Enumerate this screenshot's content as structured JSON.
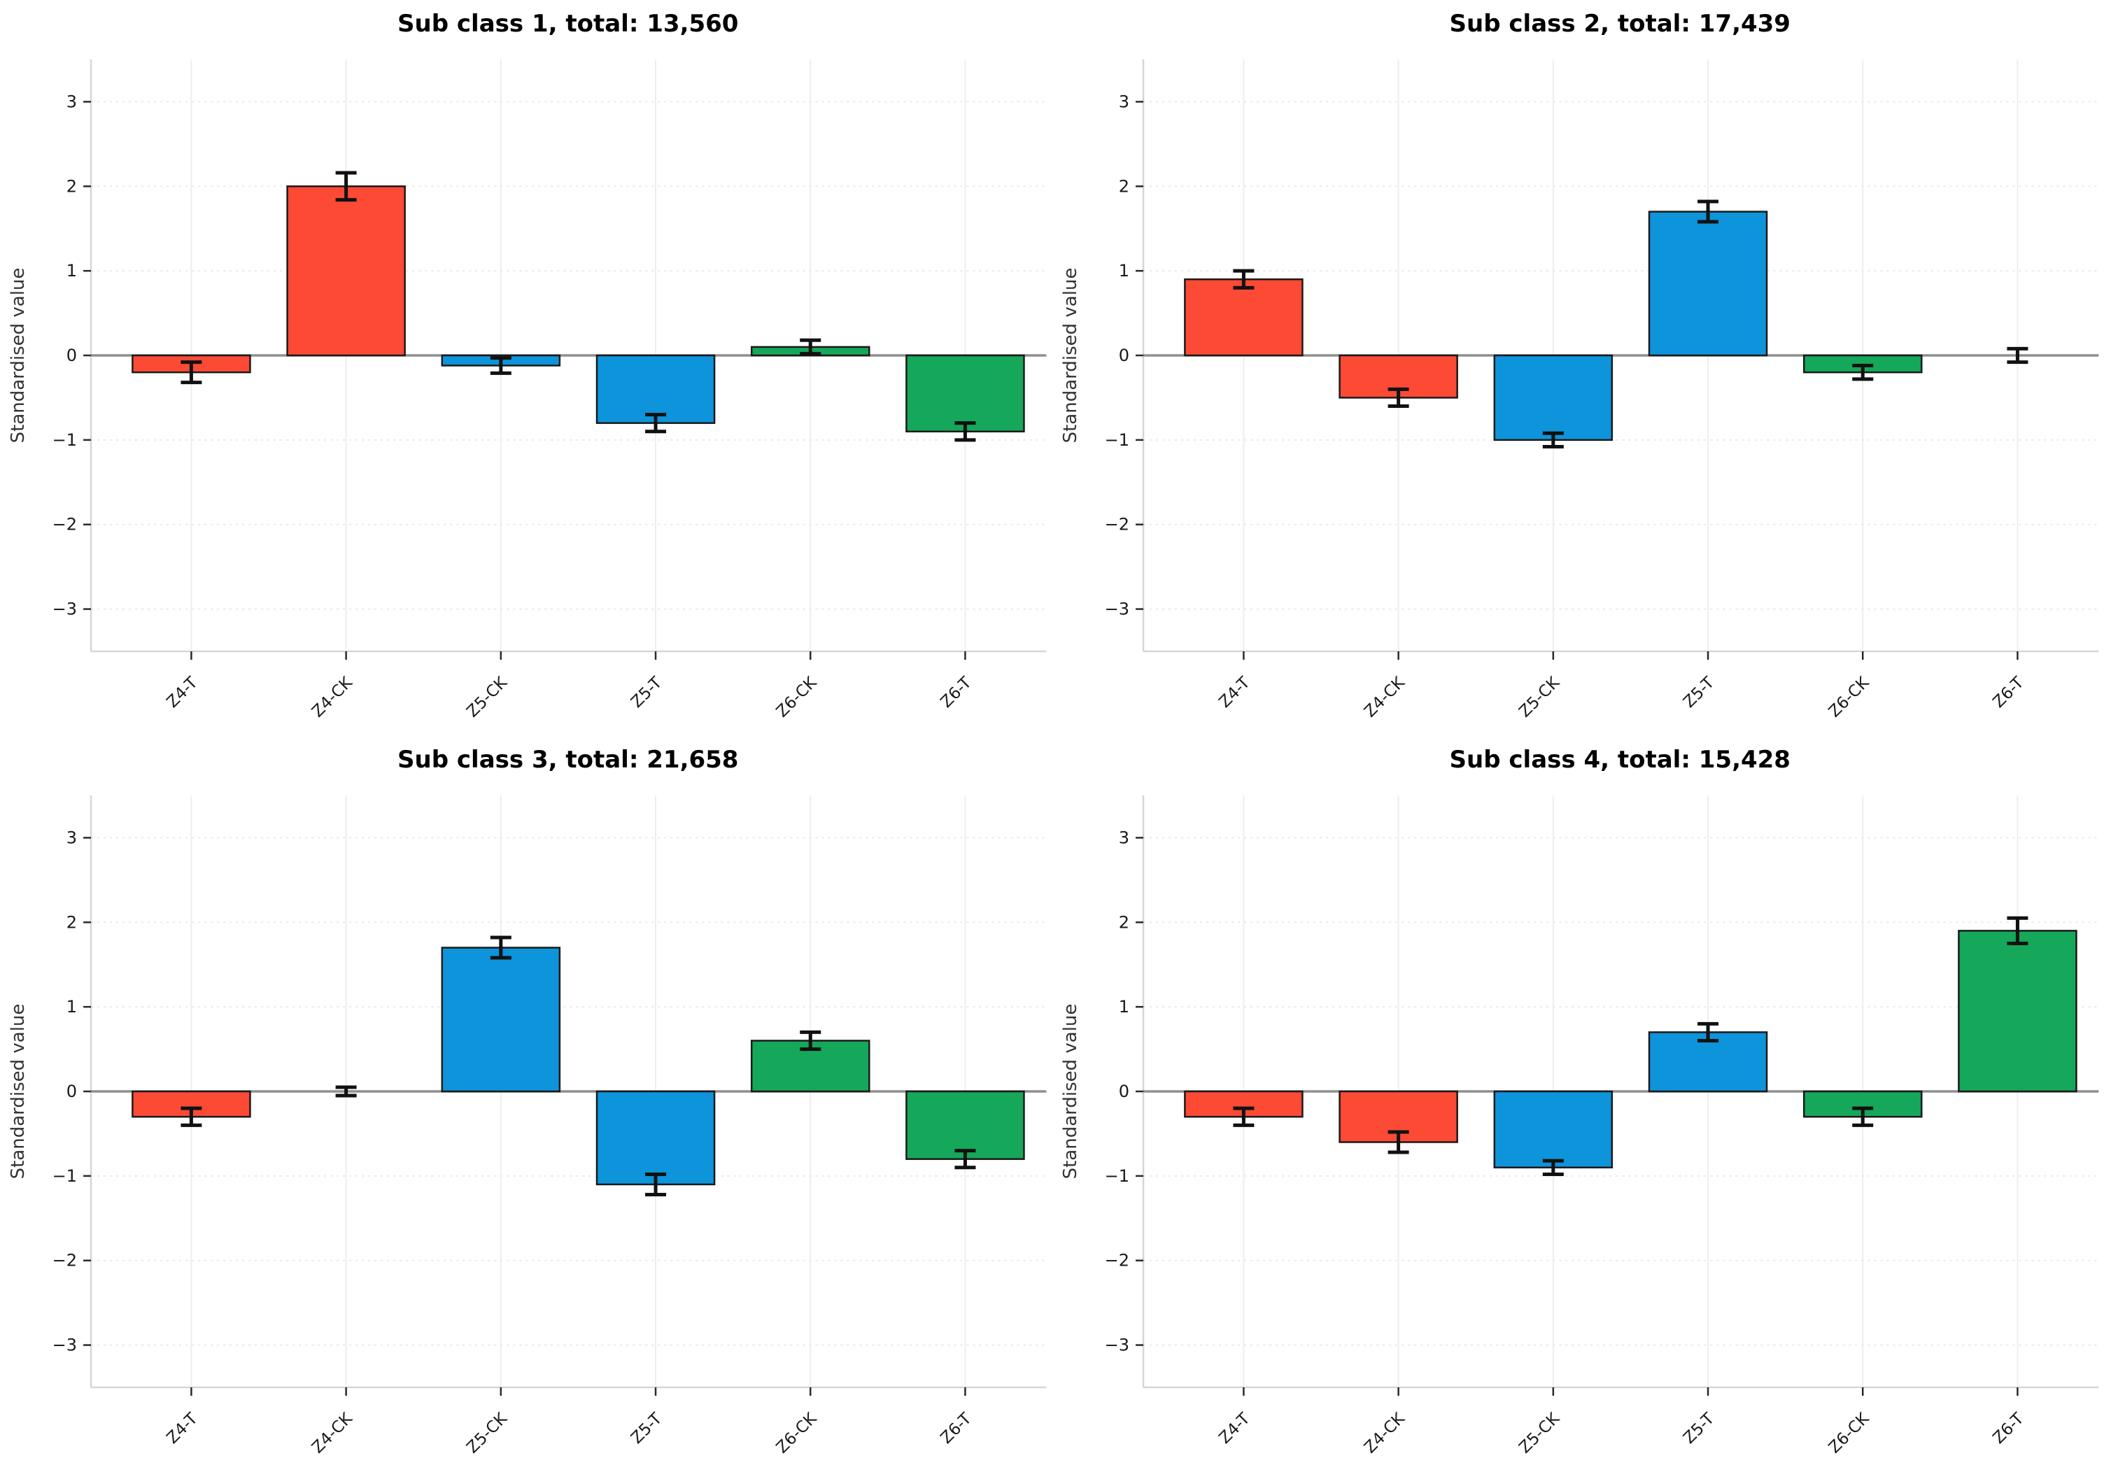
{
  "figure": {
    "ylabel": "Standardised value",
    "background_color": "#ffffff"
  },
  "palette": {
    "red": "#fc4a35",
    "blue": "#0d94db",
    "green": "#15a75a",
    "bar_edge": "#1a1a1a",
    "errorbar": "#111111",
    "zero_line": "#8f8f8f",
    "spine": "#d6d6d6",
    "grid_v": "#eeeeee",
    "grid_h": "#e9e9e9",
    "tick": "#2a2a2a",
    "tick_label": "#1a1a1a"
  },
  "chart_data": [
    {
      "type": "bar",
      "title": "Sub class 1, total: 13,560",
      "subclass": "1",
      "total": "13,560",
      "categories": [
        "Z4-T",
        "Z4-CK",
        "Z5-CK",
        "Z5-T",
        "Z6-CK",
        "Z6-T"
      ],
      "values": [
        -0.2,
        2.0,
        -0.12,
        -0.8,
        0.1,
        -0.9
      ],
      "errors": [
        0.12,
        0.16,
        0.09,
        0.1,
        0.08,
        0.1
      ],
      "bar_colors": [
        "red",
        "red",
        "blue",
        "blue",
        "green",
        "green"
      ],
      "xlabel": "",
      "ylabel": "Standardised value",
      "ylim": [
        -3.5,
        3.5
      ],
      "yticks": [
        -3,
        -2,
        -1,
        0,
        1,
        2,
        3
      ],
      "grid": true,
      "legend": false
    },
    {
      "type": "bar",
      "title": "Sub class 2, total: 17,439",
      "subclass": "2",
      "total": "17,439",
      "categories": [
        "Z4-T",
        "Z4-CK",
        "Z5-CK",
        "Z5-T",
        "Z6-CK",
        "Z6-T"
      ],
      "values": [
        0.9,
        -0.5,
        -1.0,
        1.7,
        -0.2,
        0.0
      ],
      "errors": [
        0.1,
        0.1,
        0.08,
        0.12,
        0.08,
        0.08
      ],
      "bar_colors": [
        "red",
        "red",
        "blue",
        "blue",
        "green",
        "green"
      ],
      "xlabel": "",
      "ylabel": "Standardised value",
      "ylim": [
        -3.5,
        3.5
      ],
      "yticks": [
        -3,
        -2,
        -1,
        0,
        1,
        2,
        3
      ],
      "grid": true,
      "legend": false
    },
    {
      "type": "bar",
      "title": "Sub class 3, total: 21,658",
      "subclass": "3",
      "total": "21,658",
      "categories": [
        "Z4-T",
        "Z4-CK",
        "Z5-CK",
        "Z5-T",
        "Z6-CK",
        "Z6-T"
      ],
      "values": [
        -0.3,
        0.0,
        1.7,
        -1.1,
        0.6,
        -0.8
      ],
      "errors": [
        0.1,
        0.05,
        0.12,
        0.12,
        0.1,
        0.1
      ],
      "bar_colors": [
        "red",
        "red",
        "blue",
        "blue",
        "green",
        "green"
      ],
      "xlabel": "",
      "ylabel": "Standardised value",
      "ylim": [
        -3.5,
        3.5
      ],
      "yticks": [
        -3,
        -2,
        -1,
        0,
        1,
        2,
        3
      ],
      "grid": true,
      "legend": false
    },
    {
      "type": "bar",
      "title": "Sub class 4, total: 15,428",
      "subclass": "4",
      "total": "15,428",
      "categories": [
        "Z4-T",
        "Z4-CK",
        "Z5-CK",
        "Z5-T",
        "Z6-CK",
        "Z6-T"
      ],
      "values": [
        -0.3,
        -0.6,
        -0.9,
        0.7,
        -0.3,
        1.9
      ],
      "errors": [
        0.1,
        0.12,
        0.08,
        0.1,
        0.1,
        0.15
      ],
      "bar_colors": [
        "red",
        "red",
        "blue",
        "blue",
        "green",
        "green"
      ],
      "xlabel": "",
      "ylabel": "Standardised value",
      "ylim": [
        -3.5,
        3.5
      ],
      "yticks": [
        -3,
        -2,
        -1,
        0,
        1,
        2,
        3
      ],
      "grid": true,
      "legend": false
    }
  ]
}
